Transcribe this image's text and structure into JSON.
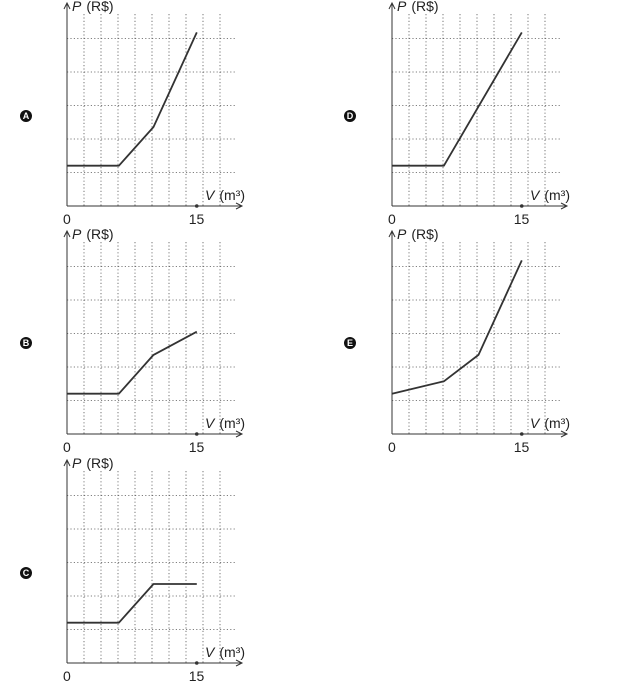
{
  "chart_data": [
    {
      "option": "A",
      "type": "line",
      "ylabel_var": "P",
      "ylabel_unit": "(R$)",
      "xlabel_var": "V",
      "xlabel_unit": "(m³)",
      "x_ticks": [
        "0",
        "15"
      ],
      "xlim": [
        0,
        20
      ],
      "ylim": [
        0,
        100
      ],
      "grid": true,
      "series": [
        {
          "x": [
            0,
            6,
            10,
            15
          ],
          "y": [
            26,
            26,
            51,
            112
          ]
        }
      ]
    },
    {
      "option": "B",
      "type": "line",
      "ylabel_var": "P",
      "ylabel_unit": "(R$)",
      "xlabel_var": "V",
      "xlabel_unit": "(m³)",
      "x_ticks": [
        "0",
        "15"
      ],
      "xlim": [
        0,
        20
      ],
      "ylim": [
        0,
        100
      ],
      "grid": true,
      "series": [
        {
          "x": [
            0,
            6,
            10,
            15
          ],
          "y": [
            26,
            26,
            51,
            66
          ]
        }
      ]
    },
    {
      "option": "C",
      "type": "line",
      "ylabel_var": "P",
      "ylabel_unit": "(R$)",
      "xlabel_var": "V",
      "xlabel_unit": "(m³)",
      "x_ticks": [
        "0",
        "15"
      ],
      "xlim": [
        0,
        20
      ],
      "ylim": [
        0,
        100
      ],
      "grid": true,
      "series": [
        {
          "x": [
            0,
            6,
            10,
            15
          ],
          "y": [
            26,
            26,
            51,
            51
          ]
        }
      ]
    },
    {
      "option": "D",
      "type": "line",
      "ylabel_var": "P",
      "ylabel_unit": "(R$)",
      "xlabel_var": "V",
      "xlabel_unit": "(m³)",
      "x_ticks": [
        "0",
        "15"
      ],
      "xlim": [
        0,
        20
      ],
      "ylim": [
        0,
        100
      ],
      "grid": true,
      "series": [
        {
          "x": [
            0,
            6,
            15
          ],
          "y": [
            26,
            26,
            112
          ]
        }
      ]
    },
    {
      "option": "E",
      "type": "line",
      "ylabel_var": "P",
      "ylabel_unit": "(R$)",
      "xlabel_var": "V",
      "xlabel_unit": "(m³)",
      "x_ticks": [
        "0",
        "15"
      ],
      "xlim": [
        0,
        20
      ],
      "ylim": [
        0,
        100
      ],
      "grid": true,
      "series": [
        {
          "x": [
            0,
            6,
            10,
            15
          ],
          "y": [
            26,
            34,
            51,
            112
          ]
        }
      ]
    }
  ]
}
